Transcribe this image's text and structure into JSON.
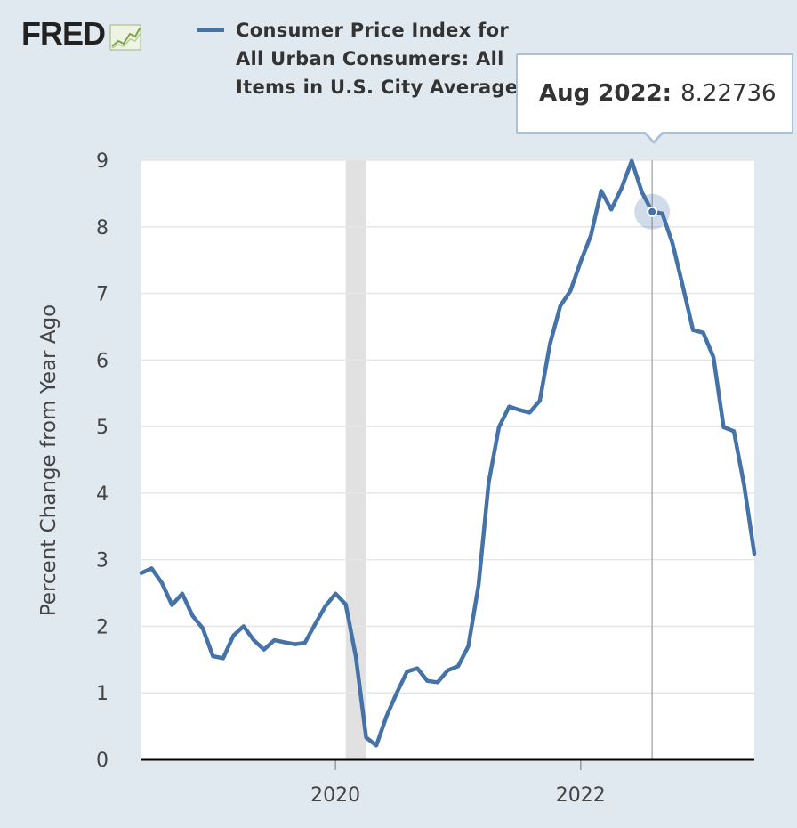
{
  "logo": {
    "text": "FRED"
  },
  "legend": {
    "label": "Consumer Price Index for All Urban Consumers: All Items in U.S. City Average",
    "color": "#4572a7"
  },
  "tooltip": {
    "date": "Aug 2022:",
    "value": "8.22736"
  },
  "chart_data": {
    "type": "line",
    "title": "",
    "xlabel": "",
    "ylabel": "Percent Change from Year Ago",
    "ylim": [
      0,
      9
    ],
    "yticks": [
      0,
      1,
      2,
      3,
      4,
      5,
      6,
      7,
      8,
      9
    ],
    "xticks": [
      {
        "label": "2020",
        "x": 2020.0
      },
      {
        "label": "2022",
        "x": 2022.0
      }
    ],
    "xrange": [
      2018.4167,
      2023.4167
    ],
    "recession": [
      2020.0833,
      2020.25
    ],
    "highlight": {
      "x": 2022.5833,
      "y": 8.22736
    },
    "series": [
      {
        "name": "Consumer Price Index for All Urban Consumers: All Items in U.S. City Average",
        "color": "#4572a7",
        "x": [
          2018.4167,
          2018.5,
          2018.5833,
          2018.6667,
          2018.75,
          2018.8333,
          2018.9167,
          2019.0,
          2019.0833,
          2019.1667,
          2019.25,
          2019.3333,
          2019.4167,
          2019.5,
          2019.5833,
          2019.6667,
          2019.75,
          2019.8333,
          2019.9167,
          2020.0,
          2020.0833,
          2020.1667,
          2020.25,
          2020.3333,
          2020.4167,
          2020.5,
          2020.5833,
          2020.6667,
          2020.75,
          2020.8333,
          2020.9167,
          2021.0,
          2021.0833,
          2021.1667,
          2021.25,
          2021.3333,
          2021.4167,
          2021.5,
          2021.5833,
          2021.6667,
          2021.75,
          2021.8333,
          2021.9167,
          2022.0,
          2022.0833,
          2022.1667,
          2022.25,
          2022.3333,
          2022.4167,
          2022.5,
          2022.5833,
          2022.6667,
          2022.75,
          2022.8333,
          2022.9167,
          2023.0,
          2023.0833,
          2023.1667,
          2023.25,
          2023.3333,
          2023.4167
        ],
        "values": [
          2.8,
          2.87,
          2.65,
          2.32,
          2.49,
          2.16,
          1.97,
          1.55,
          1.52,
          1.86,
          2.0,
          1.79,
          1.65,
          1.79,
          1.76,
          1.73,
          1.75,
          2.03,
          2.3,
          2.49,
          2.33,
          1.54,
          0.33,
          0.21,
          0.65,
          1.0,
          1.32,
          1.37,
          1.18,
          1.16,
          1.34,
          1.4,
          1.7,
          2.62,
          4.16,
          4.99,
          5.3,
          5.25,
          5.21,
          5.39,
          6.24,
          6.81,
          7.04,
          7.48,
          7.87,
          8.54,
          8.26,
          8.58,
          8.99,
          8.52,
          8.23,
          8.2,
          7.75,
          7.11,
          6.45,
          6.41,
          6.04,
          4.99,
          4.93,
          4.12,
          3.09
        ]
      }
    ]
  }
}
